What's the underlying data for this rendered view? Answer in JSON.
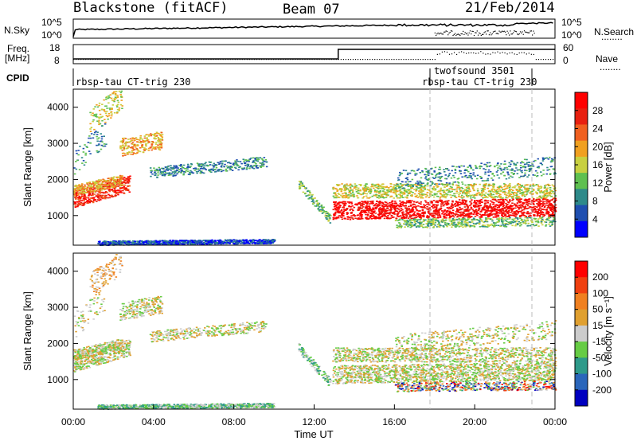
{
  "header": {
    "station": "Blackstone (fitACF)",
    "beam": "Beam 07",
    "date": "21/Feb/2014"
  },
  "side_labels": {
    "nsky": "N.Sky",
    "nsearch": "N.Search",
    "freq_line1": "Freq.",
    "freq_line2": "[MHz]",
    "nave": "Nave",
    "cpid": "CPID",
    "dots": "........"
  },
  "panels": {
    "noise": {
      "left_ticks": [
        "10^5",
        "10^0"
      ],
      "right_ticks": [
        "10^5",
        "10^0"
      ]
    },
    "freq": {
      "left_ticks": [
        "18",
        "8"
      ],
      "right_ticks": [
        "60",
        "0"
      ]
    }
  },
  "cpid": {
    "left_label": "rbsp-tau CT-trig 230",
    "right_label_top": "twofsound 3501",
    "right_label_bottom": "rbsp-tau CT-trig 230"
  },
  "chart_data": [
    {
      "type": "heatmap",
      "title": "",
      "ylabel": "Slant Range [km]",
      "xlabel": "",
      "xlim": [
        0,
        24
      ],
      "ylim": [
        180,
        4500
      ],
      "x_ticks": [
        "00:00",
        "04:00",
        "08:00",
        "12:00",
        "16:00",
        "20:00",
        "00:00"
      ],
      "y_ticks": [
        1000,
        2000,
        3000,
        4000
      ],
      "colorbar": {
        "label": "Power [dB]",
        "ticks": [
          4,
          8,
          12,
          16,
          20,
          24,
          28
        ],
        "range": [
          0,
          30
        ]
      }
    },
    {
      "type": "heatmap",
      "title": "",
      "ylabel": "Slant Range [km]",
      "xlabel": "Time UT",
      "xlim": [
        0,
        24
      ],
      "ylim": [
        180,
        4500
      ],
      "x_ticks": [
        "00:00",
        "04:00",
        "08:00",
        "12:00",
        "16:00",
        "20:00",
        "00:00"
      ],
      "y_ticks": [
        1000,
        2000,
        3000,
        4000
      ],
      "colorbar": {
        "label": "Velocity [m s⁻¹]",
        "ticks": [
          200,
          100,
          50,
          15,
          -15,
          -50,
          -100,
          -200
        ]
      }
    }
  ]
}
